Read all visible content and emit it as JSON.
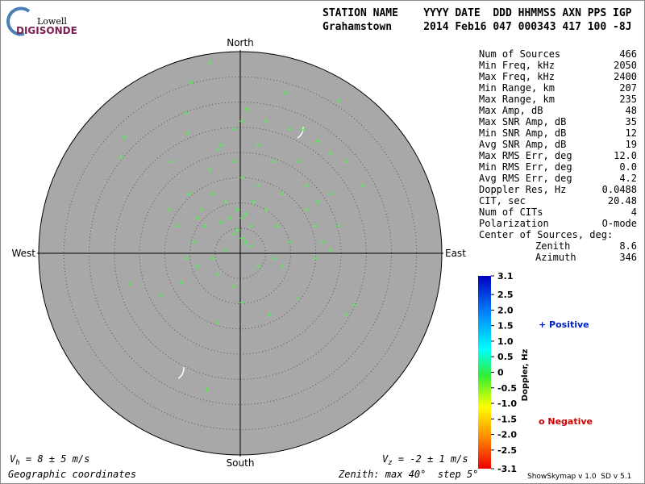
{
  "logo": {
    "top": "Lowell",
    "bottom": "DIGISONDE"
  },
  "header": {
    "line1": "STATION NAME    YYYY DATE  DDD HHMMSS AXN PPS IGP",
    "line2": "Grahamstown     2014 Feb16 047 000343 417 100 -8J"
  },
  "stats": {
    "rows": [
      [
        "Num of Sources",
        "466"
      ],
      [
        "Min Freq, kHz",
        "2050"
      ],
      [
        "Max Freq, kHz",
        "2400"
      ],
      [
        "Min Range, km",
        "207"
      ],
      [
        "Max Range, km",
        "235"
      ],
      [
        "Max Amp, dB",
        "48"
      ],
      [
        "Max SNR Amp, dB",
        "35"
      ],
      [
        "Min SNR Amp, dB",
        "12"
      ],
      [
        "Avg SNR Amp, dB",
        "19"
      ],
      [
        "Max RMS Err, deg",
        "12.0"
      ],
      [
        "Min RMS Err, deg",
        "0.0"
      ],
      [
        "Avg RMS Err, deg",
        "4.2"
      ],
      [
        "Doppler Res, Hz",
        "0.0488"
      ],
      [
        "CIT, sec",
        "20.48"
      ],
      [
        "Num of CITs",
        "4"
      ],
      [
        "Polarization",
        "O-mode"
      ]
    ],
    "center_title": "Center of Sources, deg:",
    "center_rows": [
      [
        "Zenith",
        "8.6"
      ],
      [
        "Azimuth",
        "346"
      ]
    ]
  },
  "chart_data": {
    "type": "skymap",
    "directions": {
      "north": "North",
      "south": "South",
      "east": "East",
      "west": "West"
    },
    "xlim": [
      -40,
      40
    ],
    "ylim": [
      -40,
      40
    ],
    "ring_step": 5,
    "color": "#55ee55",
    "x": [
      -6.1,
      -9.8,
      -22.9,
      -23.7,
      19.5,
      1.4,
      5.1,
      9.9,
      0.3,
      -13.8,
      -10.4,
      -4.5,
      15.5,
      17.9,
      -10.1,
      -7.7,
      -2.9,
      -0.5,
      0.3,
      1.9,
      -1.3,
      1.1,
      3.5,
      5.1,
      8.3,
      13.1,
      16.3,
      19.5,
      24.3,
      21.1,
      -9.3,
      -10.9,
      -5.3,
      3.5,
      6.7,
      9.9,
      -1.3,
      0.3,
      5.9,
      11.4,
      22.7,
      21.1,
      -22.1,
      -15.7,
      -11.7,
      -6.6,
      -4.5,
      9.1,
      12.3,
      7.5,
      -3.7,
      -2.1,
      -0.5,
      0.3,
      1.1,
      2.7,
      -5.3,
      -6.9,
      -8.5,
      -12.5,
      -14.1,
      13.1,
      15.5,
      11.5,
      6.7,
      -1.3,
      -6.1,
      0.3,
      3.5,
      -1.3,
      -10.9,
      -3.7,
      1.9,
      -2.9,
      8.3,
      14.7,
      17.9,
      -4.5,
      -8.5,
      14.7,
      17.9
    ],
    "y": [
      37.8,
      33.9,
      23,
      19,
      30.2,
      28.6,
      26.2,
      24.6,
      26.2,
      18.2,
      23.8,
      20.6,
      22.2,
      19.8,
      11.8,
      8.6,
      10.2,
      8.6,
      7,
      5.4,
      3.8,
      2.2,
      13.4,
      8.6,
      11.8,
      8.6,
      2.2,
      5.4,
      13.4,
      18.2,
      2.2,
      -1,
      -1,
      -2.6,
      -1,
      2.2,
      -6.6,
      -9.8,
      -12.2,
      -9,
      -10.2,
      -12.2,
      -6.1,
      -8.3,
      -5.8,
      -27,
      -13.8,
      31.8,
      24.6,
      5.4,
      6.2,
      7,
      4.6,
      3,
      7.8,
      10.2,
      11.8,
      5.4,
      7,
      5.4,
      8.6,
      13.4,
      10.2,
      18.2,
      18.2,
      18.2,
      16.6,
      15,
      21.4,
      24.6,
      27.8,
      21.4,
      1.4,
      0.6,
      -2.6,
      -1,
      0.6,
      -4.2,
      -2.6,
      5.4,
      11.8
    ],
    "colorbar": {
      "label": "Doppler, Hz",
      "lim": [
        -3.1,
        3.1
      ],
      "ticks": [
        3.1,
        2.5,
        {
          "value": 2,
          "label": "2.0"
        },
        1.5,
        {
          "value": 1,
          "label": "1.0"
        },
        0.5,
        0,
        -0.5,
        {
          "value": -1,
          "label": "-1.0"
        },
        -1.5,
        {
          "value": -2,
          "label": "-2.0"
        },
        -2.5,
        -3.1
      ]
    },
    "legend": {
      "positive": "+ Positive",
      "negative": "o Negative"
    }
  },
  "footer": {
    "vh": {
      "symbol": "V",
      "sub": "h",
      "text": " = 8 ± 5 m/s"
    },
    "vz": {
      "symbol": "V",
      "sub": "z",
      "text": " = -2 ± 1 m/s"
    },
    "coords": "Geographic coordinates",
    "zenith": "Zenith: max 40°  step 5°",
    "version": "ShowSkymap v 1.0  SD v 5.1"
  }
}
